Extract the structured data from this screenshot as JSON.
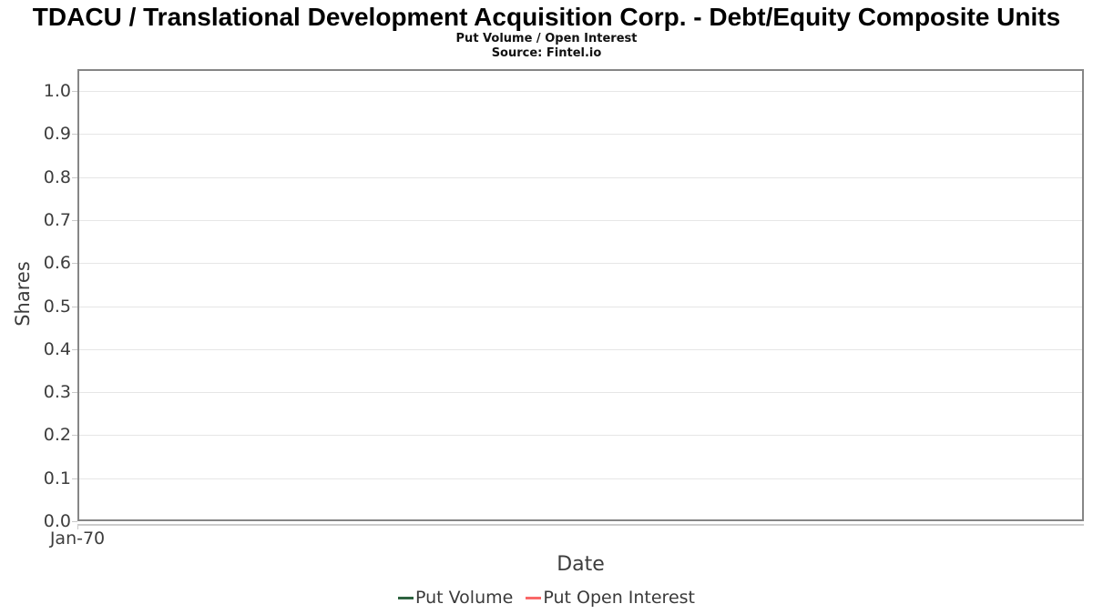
{
  "chart_data": {
    "type": "line",
    "title": "TDACU / Translational Development Acquisition Corp. - Debt/Equity Composite Units",
    "subtitle": "Put Volume / Open Interest",
    "source": "Source: Fintel.io",
    "xlabel": "Date",
    "ylabel": "Shares",
    "ylim": [
      0.0,
      1.0
    ],
    "y_ticks": [
      {
        "label": "1.0",
        "value": 1.0
      },
      {
        "label": "0.9",
        "value": 0.9
      },
      {
        "label": "0.8",
        "value": 0.8
      },
      {
        "label": "0.7",
        "value": 0.7
      },
      {
        "label": "0.6",
        "value": 0.6
      },
      {
        "label": "0.5",
        "value": 0.5
      },
      {
        "label": "0.4",
        "value": 0.4
      },
      {
        "label": "0.3",
        "value": 0.3
      },
      {
        "label": "0.2",
        "value": 0.2
      },
      {
        "label": "0.1",
        "value": 0.1
      },
      {
        "label": "0.0",
        "value": 0.0
      }
    ],
    "x_ticks": [
      {
        "label": "Jan-70",
        "position": 0
      }
    ],
    "grid": "horizontal",
    "legend_position": "bottom-center",
    "series": [
      {
        "name": "Put Volume",
        "color": "#2e6340",
        "x": [],
        "y": []
      },
      {
        "name": "Put Open Interest",
        "color": "#f96868",
        "x": [],
        "y": []
      }
    ]
  },
  "colors": {
    "grid": "#e6e6e6",
    "plot_border": "#868686",
    "tick": "#c9c9c9",
    "text": "#3d3d3d",
    "title_text": "#000000"
  }
}
